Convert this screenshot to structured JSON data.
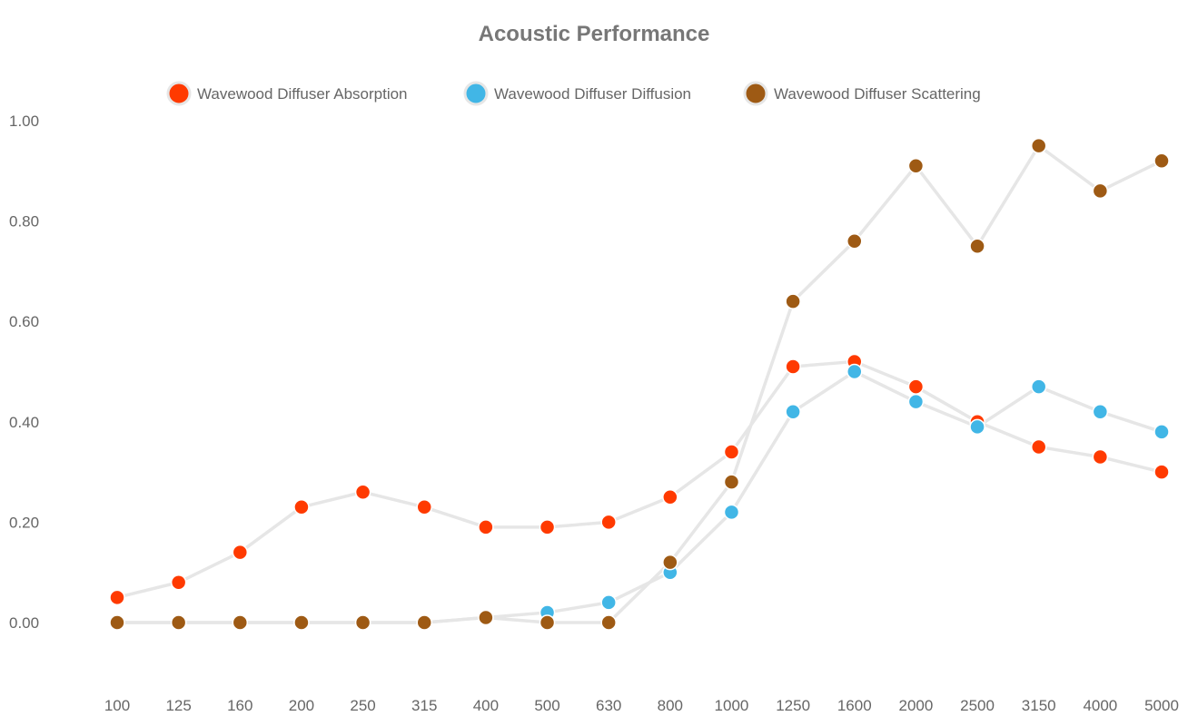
{
  "chart_data": {
    "type": "line",
    "title": "Acoustic Performance",
    "xlabel": "",
    "ylabel": "",
    "categories": [
      "100",
      "125",
      "160",
      "200",
      "250",
      "315",
      "400",
      "500",
      "630",
      "800",
      "1000",
      "1250",
      "1600",
      "2000",
      "2500",
      "3150",
      "4000",
      "5000"
    ],
    "yticks": [
      "0.00",
      "0.20",
      "0.40",
      "0.60",
      "0.80",
      "1.00"
    ],
    "ylim": [
      -0.1,
      1.05
    ],
    "grid": false,
    "legend_position": "top-center",
    "line_color": "#e6e6e6",
    "series": [
      {
        "name": "Wavewood Diffuser Absorption",
        "color": "#ff3a00",
        "values": [
          0.05,
          0.08,
          0.14,
          0.23,
          0.26,
          0.23,
          0.19,
          0.19,
          0.2,
          0.25,
          0.34,
          0.51,
          0.52,
          0.47,
          0.4,
          0.35,
          0.33,
          0.3
        ]
      },
      {
        "name": "Wavewood Diffuser Diffusion",
        "color": "#41b6e6",
        "values": [
          0.0,
          0.0,
          0.0,
          0.0,
          0.0,
          0.0,
          0.01,
          0.02,
          0.04,
          0.1,
          0.22,
          0.42,
          0.5,
          0.44,
          0.39,
          0.47,
          0.42,
          0.38
        ]
      },
      {
        "name": "Wavewood Diffuser Scattering",
        "color": "#9e5a14",
        "values": [
          0.0,
          0.0,
          0.0,
          0.0,
          0.0,
          0.0,
          0.01,
          0.0,
          0.0,
          0.12,
          0.28,
          0.64,
          0.76,
          0.91,
          0.75,
          0.95,
          0.86,
          0.92
        ]
      }
    ]
  }
}
